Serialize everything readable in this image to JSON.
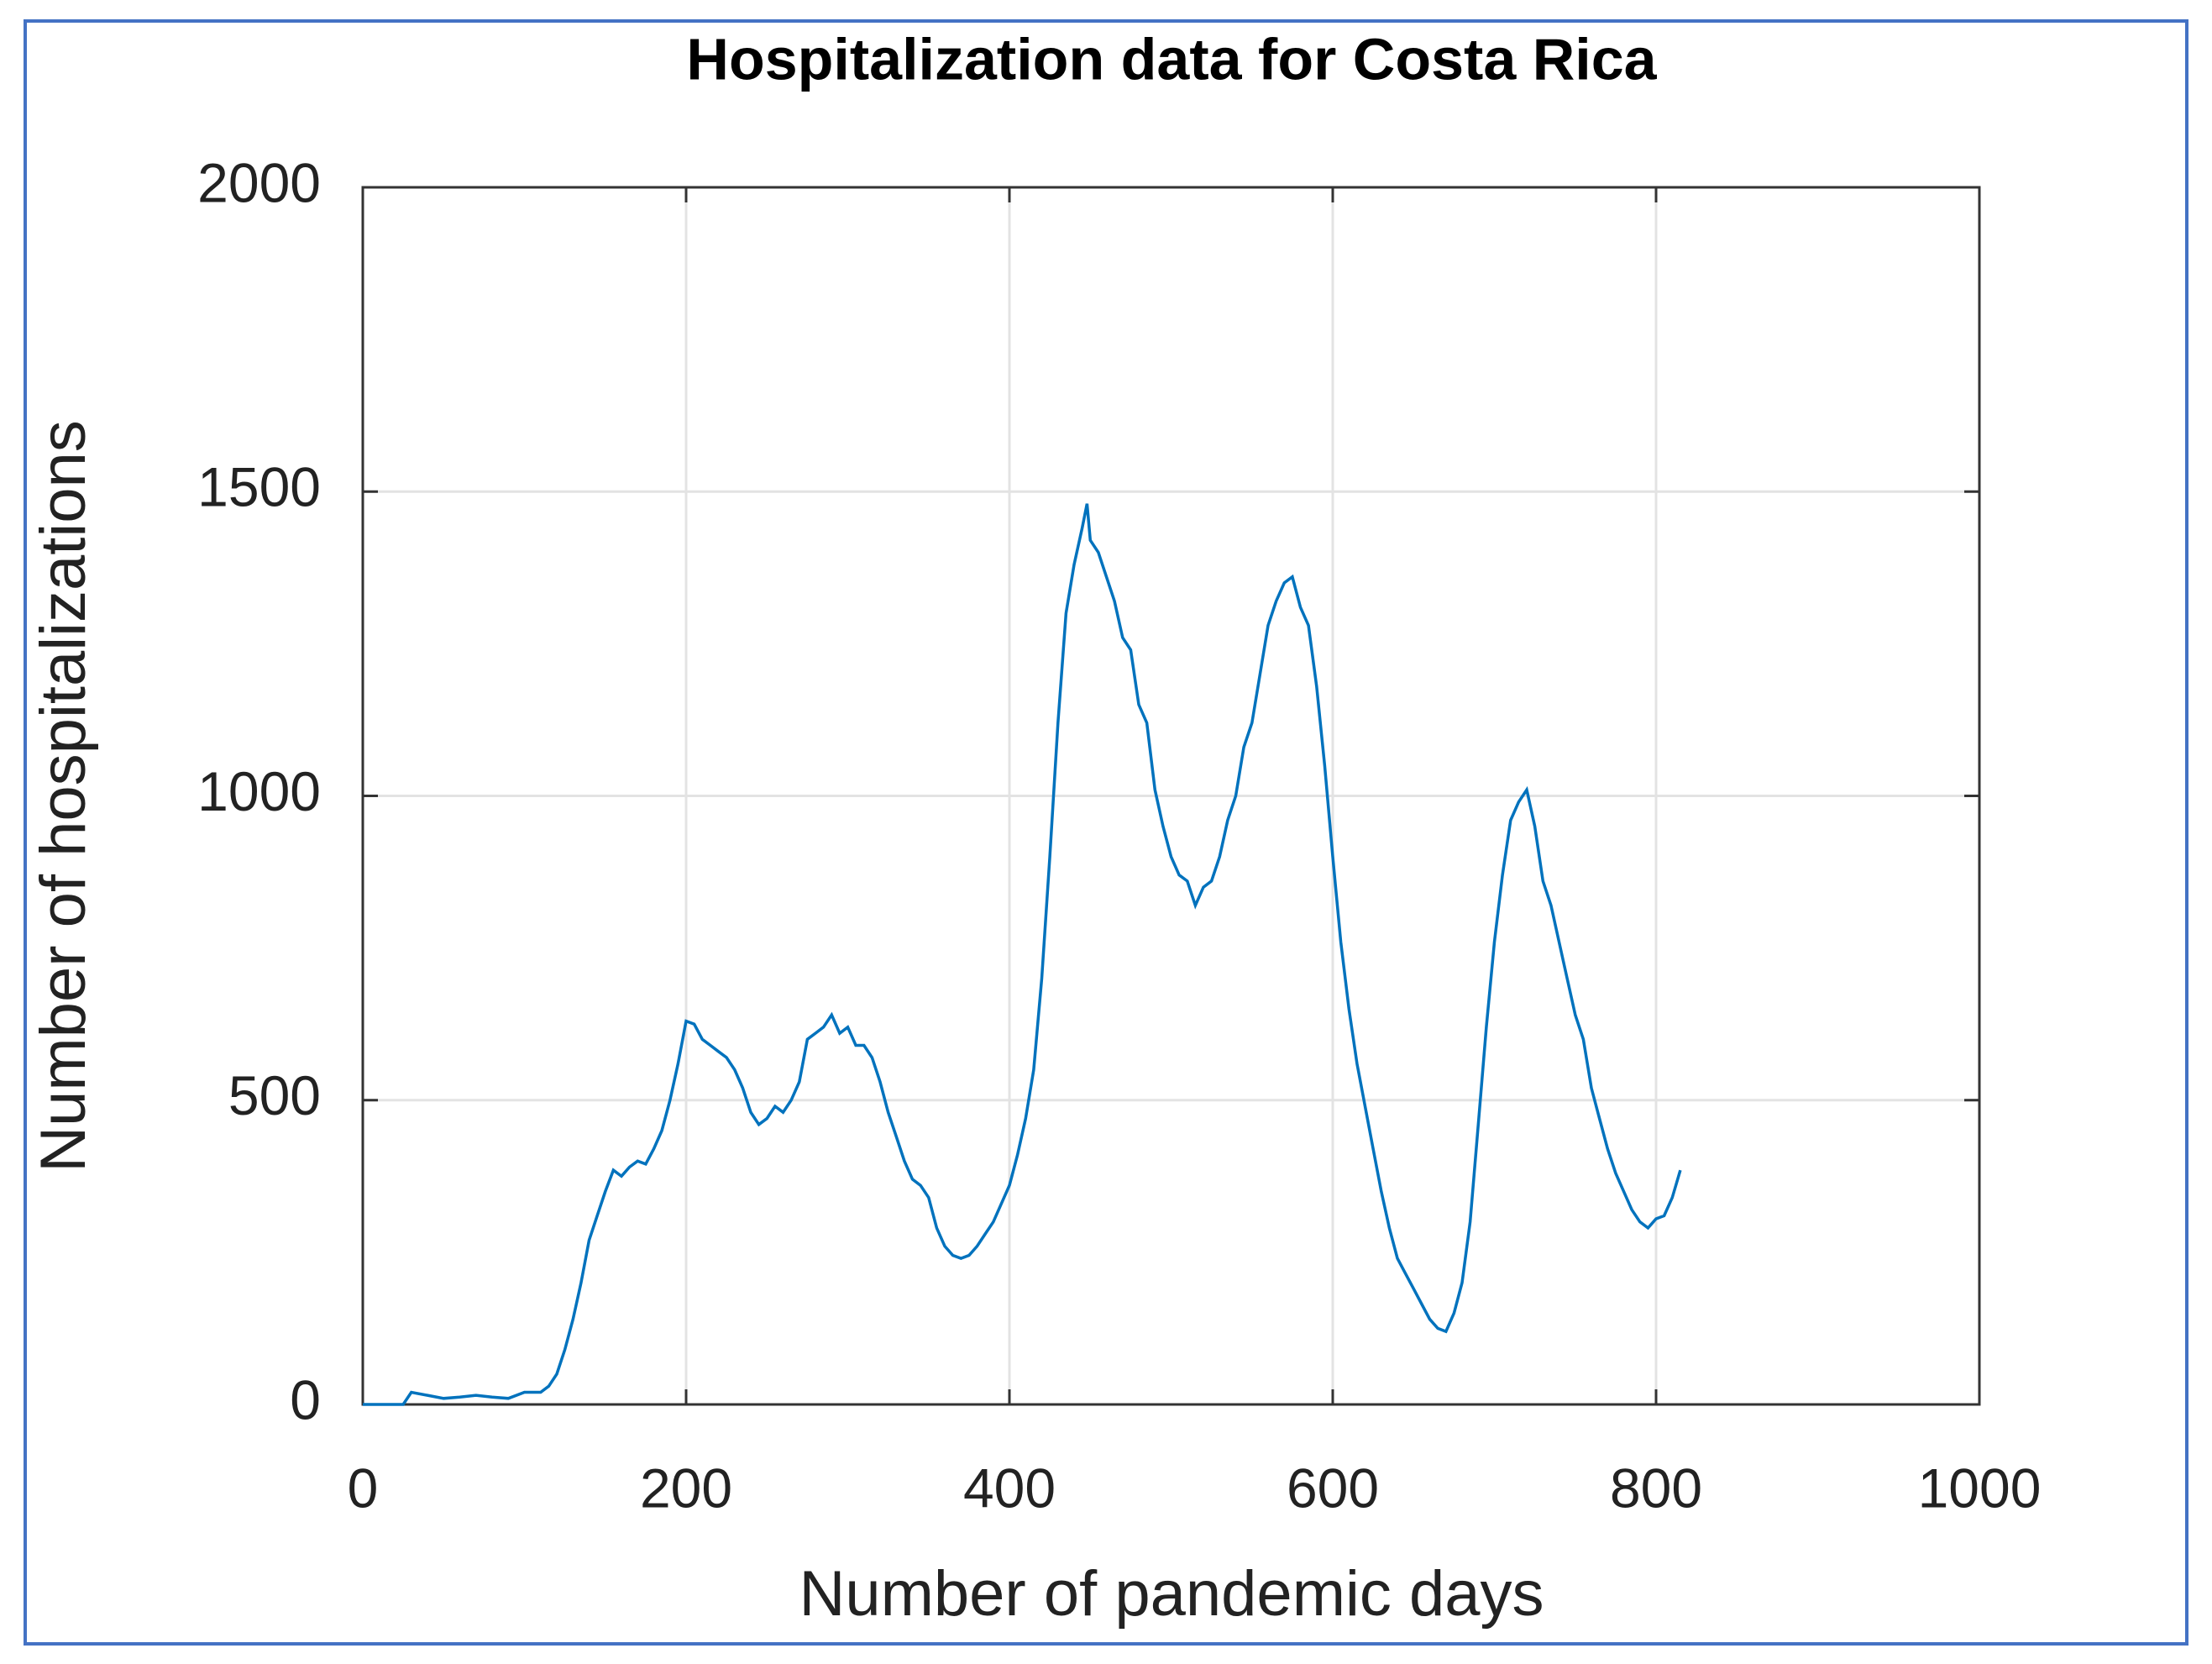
{
  "chart_data": {
    "type": "line",
    "title": "Hospitalization data for Costa Rica",
    "x_label": "Number of pandemic days",
    "y_label": "Number of hospitalizations",
    "xlim": [
      0,
      1000
    ],
    "xticks": [
      0,
      200,
      400,
      600,
      800,
      1000
    ],
    "ylim": [
      0,
      2000
    ],
    "yticks": [
      0,
      500,
      1000,
      1500,
      2000
    ],
    "grid": true,
    "series": [
      {
        "color": "#0072bd",
        "x": [
          0,
          10,
          25,
          30,
          40,
          50,
          60,
          70,
          80,
          90,
          100,
          110,
          115,
          120,
          125,
          130,
          135,
          140,
          145,
          150,
          155,
          160,
          165,
          170,
          175,
          180,
          185,
          190,
          195,
          200,
          205,
          210,
          215,
          220,
          225,
          230,
          235,
          240,
          245,
          250,
          255,
          260,
          265,
          270,
          275,
          280,
          285,
          290,
          295,
          300,
          305,
          310,
          315,
          320,
          325,
          330,
          335,
          340,
          345,
          350,
          355,
          360,
          365,
          370,
          375,
          380,
          385,
          390,
          395,
          400,
          405,
          410,
          415,
          420,
          425,
          430,
          435,
          440,
          445,
          448,
          450,
          455,
          460,
          465,
          470,
          475,
          480,
          485,
          490,
          495,
          500,
          505,
          510,
          515,
          520,
          525,
          530,
          535,
          540,
          545,
          550,
          555,
          560,
          565,
          570,
          575,
          580,
          585,
          590,
          595,
          600,
          605,
          610,
          615,
          620,
          625,
          630,
          635,
          640,
          645,
          650,
          655,
          660,
          665,
          670,
          675,
          680,
          685,
          690,
          695,
          700,
          705,
          710,
          715,
          720,
          725,
          730,
          735,
          740,
          745,
          750,
          755,
          760,
          765,
          770,
          775,
          780,
          785,
          790,
          795,
          800,
          805,
          810,
          815
        ],
        "values": [
          0,
          0,
          0,
          20,
          15,
          10,
          12,
          15,
          12,
          10,
          20,
          20,
          30,
          50,
          90,
          140,
          200,
          270,
          310,
          350,
          385,
          375,
          390,
          400,
          395,
          420,
          450,
          500,
          560,
          630,
          625,
          600,
          590,
          580,
          570,
          550,
          520,
          480,
          460,
          470,
          490,
          480,
          500,
          530,
          600,
          610,
          620,
          640,
          610,
          620,
          590,
          590,
          570,
          530,
          480,
          440,
          400,
          370,
          360,
          340,
          290,
          260,
          245,
          240,
          245,
          260,
          280,
          300,
          330,
          360,
          410,
          470,
          550,
          700,
          900,
          1120,
          1300,
          1380,
          1440,
          1480,
          1420,
          1400,
          1360,
          1320,
          1260,
          1240,
          1150,
          1120,
          1010,
          950,
          900,
          870,
          860,
          820,
          850,
          860,
          900,
          960,
          1000,
          1080,
          1120,
          1200,
          1280,
          1320,
          1350,
          1360,
          1310,
          1280,
          1180,
          1050,
          900,
          760,
          650,
          560,
          490,
          420,
          350,
          290,
          240,
          215,
          190,
          165,
          140,
          125,
          120,
          150,
          200,
          300,
          460,
          620,
          760,
          870,
          960,
          990,
          1010,
          950,
          860,
          820,
          760,
          700,
          640,
          600,
          520,
          470,
          420,
          380,
          350,
          320,
          300,
          290,
          305,
          310,
          340,
          385
        ]
      }
    ]
  }
}
